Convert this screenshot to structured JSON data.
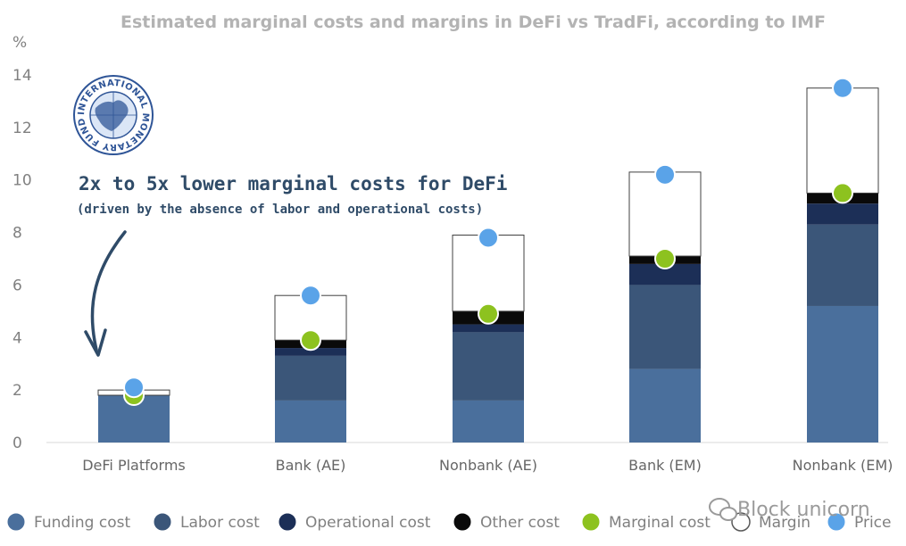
{
  "chart_data": {
    "type": "bar",
    "stacked": true,
    "title": "Estimated marginal costs and margins in DeFi vs TradFi, according to IMF",
    "ylabel": "%",
    "ylim": [
      0,
      14
    ],
    "yticks": [
      0,
      2,
      4,
      6,
      8,
      10,
      12,
      14
    ],
    "categories": [
      "DeFi Platforms",
      "Bank (AE)",
      "Nonbank (AE)",
      "Bank (EM)",
      "Nonbank (EM)"
    ],
    "series": [
      {
        "name": "Funding cost",
        "kind": "bar",
        "color": "#4a6f9c",
        "values": [
          1.8,
          1.6,
          1.6,
          2.8,
          5.2
        ]
      },
      {
        "name": "Labor cost",
        "kind": "bar",
        "color": "#3b5679",
        "values": [
          0,
          1.7,
          2.6,
          3.2,
          3.1
        ]
      },
      {
        "name": "Operational cost",
        "kind": "bar",
        "color": "#1c2f57",
        "values": [
          0,
          0.3,
          0.3,
          0.8,
          0.8
        ]
      },
      {
        "name": "Other cost",
        "kind": "bar",
        "color": "#0a0a0a",
        "values": [
          0,
          0.3,
          0.5,
          0.3,
          0.4
        ]
      },
      {
        "name": "Margin",
        "kind": "bar",
        "color": "#ffffff",
        "values": [
          0.2,
          1.7,
          2.9,
          3.2,
          4.0
        ]
      },
      {
        "name": "Marginal cost",
        "kind": "marker",
        "color": "#8dc21f",
        "values": [
          1.8,
          3.9,
          4.9,
          7.0,
          9.5
        ]
      },
      {
        "name": "Price",
        "kind": "marker",
        "color": "#5aa3e8",
        "values": [
          2.1,
          5.6,
          7.8,
          10.2,
          13.5
        ]
      }
    ],
    "legend": [
      "Funding cost",
      "Labor cost",
      "Operational cost",
      "Other cost",
      "Marginal cost",
      "Margin",
      "Price"
    ],
    "legend_position": "bottom",
    "annotation": {
      "main": "2x to 5x lower marginal costs for DeFi",
      "sub": "(driven by the absence of labor and operational costs)"
    },
    "logo_text": "INTERNATIONAL MONETARY FUND",
    "watermark": "Block unicorn"
  }
}
